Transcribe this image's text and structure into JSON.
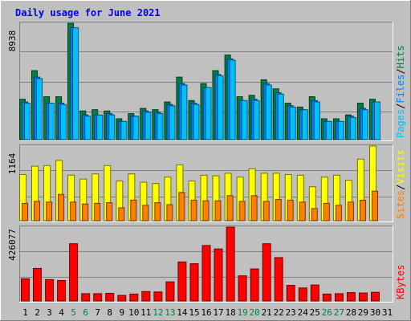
{
  "chart_data": {
    "type": "bar",
    "title": "Daily usage for June 2021",
    "colors": {
      "background": "#c0c0c0",
      "title": "#0000ff",
      "hits": "#008040",
      "files": "#0080ff",
      "pages": "#00c0ff",
      "visits": "#ffff00",
      "sites": "#ff8000",
      "kbytes": "#ff0000",
      "weekend_label": "#008040",
      "weekday_label": "#000000",
      "gridline": "#808080"
    },
    "days": [
      "1",
      "2",
      "3",
      "4",
      "5",
      "6",
      "7",
      "8",
      "9",
      "10",
      "11",
      "12",
      "13",
      "14",
      "15",
      "16",
      "17",
      "18",
      "19",
      "20",
      "21",
      "22",
      "23",
      "24",
      "25",
      "26",
      "27",
      "28",
      "29",
      "30",
      "31"
    ],
    "weekend_days": [
      "5",
      "6",
      "12",
      "13",
      "19",
      "20",
      "26",
      "27"
    ],
    "panels": [
      {
        "id": "hits-files-pages",
        "ymax_label": "8938",
        "ymax": 8938,
        "legend": [
          {
            "text": "Pages",
            "color": "#00c0ff"
          },
          {
            "text": "/",
            "color": "#000000"
          },
          {
            "text": "Files",
            "color": "#0080ff"
          },
          {
            "text": "/",
            "color": "#000000"
          },
          {
            "text": "Hits",
            "color": "#008040"
          }
        ],
        "series": [
          {
            "name": "Hits",
            "values": [
              3100,
              5300,
              3300,
              3300,
              8938,
              2200,
              2300,
              2200,
              1600,
              2000,
              2400,
              2300,
              2900,
              4800,
              3000,
              4300,
              5300,
              6500,
              3300,
              3400,
              4600,
              3900,
              2800,
              2500,
              3300,
              1600,
              1600,
              1900,
              2800,
              3100,
              0
            ]
          },
          {
            "name": "Files",
            "values": [
              2900,
              4800,
              2800,
              2800,
              8600,
              1900,
              1900,
              2000,
              1400,
              1800,
              2200,
              2100,
              2700,
              4300,
              2800,
              4000,
              5000,
              6200,
              3000,
              3100,
              4300,
              3600,
              2600,
              2300,
              3000,
              1400,
              1400,
              1800,
              2400,
              2900,
              0
            ]
          },
          {
            "name": "Pages",
            "values": [
              2800,
              4700,
              2800,
              2700,
              8600,
              1800,
              1900,
              1900,
              1400,
              1800,
              2100,
              2000,
              2600,
              4200,
              2700,
              4000,
              4900,
              6100,
              3000,
              3000,
              4200,
              3500,
              2500,
              2300,
              2900,
              1400,
              1400,
              1700,
              2300,
              2900,
              0
            ]
          }
        ]
      },
      {
        "id": "visits-sites",
        "ymax_label": "1164",
        "ymax": 1164,
        "legend": [
          {
            "text": "Sites",
            "color": "#ff8000"
          },
          {
            "text": "/",
            "color": "#000000"
          },
          {
            "text": "Visits",
            "color": "#ffff00"
          }
        ],
        "series": [
          {
            "name": "Visits",
            "values": [
              720,
              850,
              860,
              940,
              710,
              650,
              730,
              860,
              620,
              730,
              600,
              580,
              680,
              870,
              620,
              710,
              700,
              740,
              680,
              810,
              740,
              740,
              720,
              710,
              530,
              680,
              710,
              630,
              960,
              1164,
              0
            ]
          },
          {
            "name": "Sites",
            "values": [
              270,
              300,
              290,
              410,
              290,
              260,
              270,
              280,
              200,
              320,
              240,
              280,
              250,
              440,
              320,
              310,
              310,
              390,
              300,
              390,
              300,
              330,
              320,
              290,
              190,
              270,
              240,
              290,
              320,
              460,
              0
            ]
          }
        ]
      },
      {
        "id": "kbytes",
        "ymax_label": "426077",
        "ymax": 426077,
        "legend": [
          {
            "text": "KBytes",
            "color": "#ff0000"
          }
        ],
        "series": [
          {
            "name": "KBytes",
            "values": [
              128000,
              188000,
              123000,
              118000,
              330000,
              42000,
              42000,
              44000,
              32000,
              40000,
              54000,
              52000,
              110000,
              225000,
              215000,
              320000,
              300000,
              426077,
              145000,
              185000,
              330000,
              250000,
              90000,
              75000,
              92000,
              40000,
              42000,
              48000,
              46000,
              50000,
              0
            ]
          }
        ]
      }
    ]
  }
}
